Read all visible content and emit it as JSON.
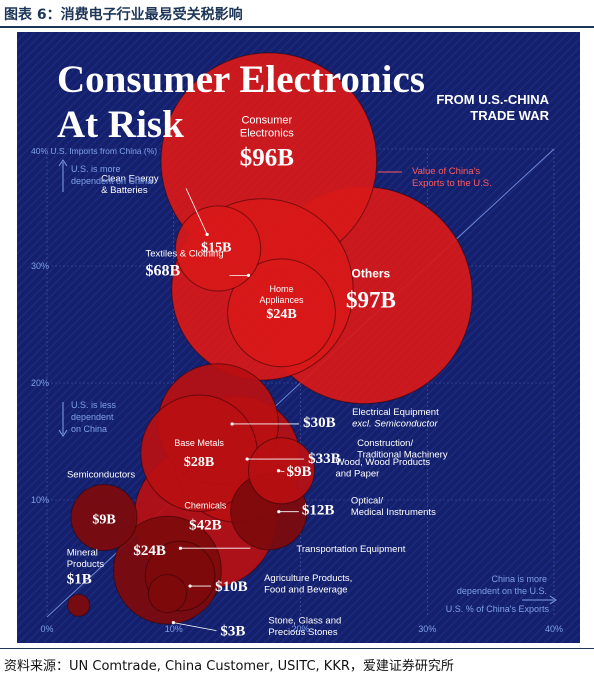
{
  "figure": {
    "label": "图表 6：消费电子行业最易受关税影响",
    "source": "资料来源：UN Comtrade, China Customer, USITC, KKR，爱建证券研究所"
  },
  "infographic": {
    "title_line1": "Consumer Electronics",
    "title_line2": "At Risk",
    "subtitle_line1": "FROM U.S.-CHINA",
    "subtitle_line2": "TRADE WAR",
    "size_note_line1": "Value of China's",
    "size_note_line2": "Exports to the U.S.",
    "y_axis_title": "40% U.S. Imports from China (%)",
    "more_dependent_line1": "U.S. is more",
    "more_dependent_line2": "dependent on China",
    "less_dependent_line1": "U.S. is less",
    "less_dependent_line2": "dependent",
    "less_dependent_line3": "on China",
    "china_dependent_line1": "China is more",
    "china_dependent_line2": "dependent on the U.S.",
    "x_axis_title": "U.S. % of China's Exports"
  },
  "colors": {
    "background": "#14206b",
    "grid": "#4a5aa8",
    "axis_label": "#7fa0e8",
    "bubble_bright": "#d81919",
    "bubble_mid": "#b80f12",
    "bubble_dark": "#7e0a0c",
    "accent_text": "#ff5a5a"
  },
  "chart_data": {
    "type": "scatter",
    "encoding": "bubble",
    "xlabel": "U.S. % of China's Exports",
    "ylabel": "U.S. Imports from China (%)",
    "xlim": [
      0,
      40
    ],
    "ylim": [
      0,
      40
    ],
    "x_ticks": [
      "0%",
      "10%",
      "20%",
      "30%",
      "40%"
    ],
    "y_ticks": [
      "10%",
      "20%",
      "30%",
      "40%"
    ],
    "size_variable": "Value of China's Exports to the U.S.",
    "points": [
      {
        "name_line1": "Consumer",
        "name_line2": "Electronics",
        "value_label": "$96B",
        "value": 96,
        "x": 17.5,
        "y": 39,
        "tone": "bright"
      },
      {
        "name_line1": "Others",
        "name_line2": "",
        "value_label": "$97B",
        "value": 97,
        "x": 25,
        "y": 27.5,
        "tone": "bright"
      },
      {
        "name_line1": "Textiles & Clothing",
        "name_line2": "",
        "value_label": "$68B",
        "value": 68,
        "x": 17,
        "y": 28,
        "tone": "bright"
      },
      {
        "name_line1": "Home",
        "name_line2": "Appliances",
        "value_label": "$24B",
        "value": 24,
        "x": 18.5,
        "y": 26,
        "tone": "bright"
      },
      {
        "name_line1": "Clean Energy",
        "name_line2": "& Batteries",
        "value_label": "$15B",
        "value": 15,
        "x": 13.5,
        "y": 31.5,
        "tone": "bright"
      },
      {
        "name_line1": "Electrical Equipment",
        "name_line2": "excl. Semiconductor",
        "value_label": "$30B",
        "value": 30,
        "x": 13.5,
        "y": 16.5,
        "tone": "mid"
      },
      {
        "name_line1": "Construction/",
        "name_line2": "Traditional Machinery",
        "value_label": "$33B",
        "value": 33,
        "x": 15,
        "y": 13.5,
        "tone": "mid"
      },
      {
        "name_line1": "Base Metals",
        "name_line2": "",
        "value_label": "$28B",
        "value": 28,
        "x": 12,
        "y": 14,
        "tone": "mid"
      },
      {
        "name_line1": "Wood, Wood Products",
        "name_line2": "and Paper",
        "value_label": "$9B",
        "value": 9,
        "x": 18.5,
        "y": 12.5,
        "tone": "mid"
      },
      {
        "name_line1": "Optical/",
        "name_line2": "Medical Instruments",
        "value_label": "$12B",
        "value": 12,
        "x": 17.5,
        "y": 9,
        "tone": "dark"
      },
      {
        "name_line1": "Chemicals",
        "name_line2": "",
        "value_label": "$42B",
        "value": 42,
        "x": 12.5,
        "y": 8.5,
        "tone": "mid"
      },
      {
        "name_line1": "Semiconductors",
        "name_line2": "",
        "value_label": "$9B",
        "value": 9,
        "x": 4.5,
        "y": 8.5,
        "tone": "dark"
      },
      {
        "name_line1": "Transportation Equipment",
        "name_line2": "",
        "value_label": "$24B",
        "value": 24,
        "x": 9.5,
        "y": 4,
        "tone": "dark"
      },
      {
        "name_line1": "Agriculture Products,",
        "name_line2": "Food and Beverage",
        "value_label": "$10B",
        "value": 10,
        "x": 10.5,
        "y": 3.5,
        "tone": "dark"
      },
      {
        "name_line1": "Stone, Glass and",
        "name_line2": "Precious Stones",
        "value_label": "$3B",
        "value": 3,
        "x": 9.5,
        "y": 2,
        "tone": "dark"
      },
      {
        "name_line1": "Mineral",
        "name_line2": "Products",
        "value_label": "$1B",
        "value": 1,
        "x": 2.5,
        "y": 1,
        "tone": "dark"
      }
    ]
  }
}
